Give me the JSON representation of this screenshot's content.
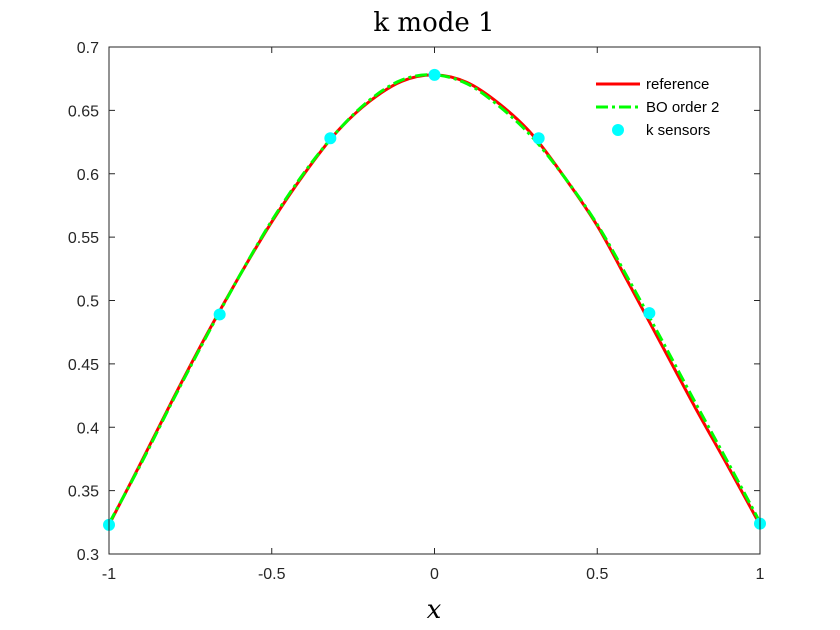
{
  "chart_data": {
    "type": "line",
    "title": "k mode 1",
    "xlabel": "x",
    "ylabel": "",
    "xlim": [
      -1,
      1
    ],
    "ylim": [
      0.3,
      0.7
    ],
    "xticks": [
      -1,
      -0.5,
      0,
      0.5,
      1
    ],
    "xtick_labels": [
      "-1",
      "-0.5",
      "0",
      "0.5",
      "1"
    ],
    "yticks": [
      0.3,
      0.35,
      0.4,
      0.45,
      0.5,
      0.55,
      0.6,
      0.65,
      0.7
    ],
    "ytick_labels": [
      "0.3",
      "0.35",
      "0.4",
      "0.45",
      "0.5",
      "0.55",
      "0.6",
      "0.65",
      "0.7"
    ],
    "grid": false,
    "legend_position": "top-right",
    "series": [
      {
        "name": "reference",
        "style": "solid",
        "color": "#ff0000",
        "x": [
          -1,
          -0.9,
          -0.8,
          -0.7,
          -0.6,
          -0.5,
          -0.4,
          -0.3,
          -0.2,
          -0.1,
          0,
          0.1,
          0.2,
          0.3,
          0.4,
          0.5,
          0.6,
          0.7,
          0.8,
          0.9,
          1
        ],
        "y": [
          0.323,
          0.373,
          0.424,
          0.473,
          0.519,
          0.562,
          0.6,
          0.633,
          0.657,
          0.673,
          0.678,
          0.672,
          0.655,
          0.631,
          0.597,
          0.559,
          0.512,
          0.464,
          0.416,
          0.37,
          0.323
        ]
      },
      {
        "name": "BO order 2",
        "style": "dashdot",
        "color": "#00ff00",
        "x": [
          -1,
          -0.9,
          -0.8,
          -0.7,
          -0.6,
          -0.5,
          -0.4,
          -0.3,
          -0.2,
          -0.1,
          0,
          0.1,
          0.2,
          0.3,
          0.4,
          0.5,
          0.6,
          0.7,
          0.8,
          0.9,
          1
        ],
        "y": [
          0.324,
          0.372,
          0.423,
          0.472,
          0.519,
          0.563,
          0.601,
          0.633,
          0.658,
          0.674,
          0.678,
          0.671,
          0.653,
          0.629,
          0.597,
          0.56,
          0.515,
          0.468,
          0.42,
          0.373,
          0.325
        ]
      },
      {
        "name": "k sensors",
        "style": "markers",
        "color": "#00ffff",
        "x": [
          -1,
          -0.66,
          -0.32,
          0,
          0.32,
          0.66,
          1
        ],
        "y": [
          0.323,
          0.489,
          0.628,
          0.678,
          0.628,
          0.49,
          0.324
        ]
      }
    ]
  }
}
